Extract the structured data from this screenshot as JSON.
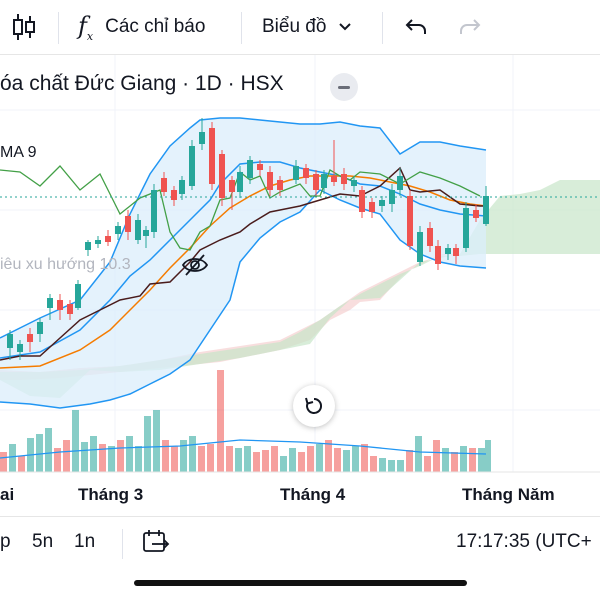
{
  "toolbar": {
    "indicators_label": "Các chỉ báo",
    "chart_type_label": "Biểu đồ"
  },
  "legend": {
    "title": "óa chất Đức Giang · 1D · HSX",
    "ma_label": "MA 9",
    "trend_label": "iêu xu hướng 10.3"
  },
  "time_axis": {
    "labels": [
      "ai",
      "Tháng 3",
      "Tháng 4",
      "Tháng Năm"
    ]
  },
  "bottom_bar": {
    "intervals": [
      "p",
      "5n",
      "1n"
    ],
    "clock": "17:17:35 (UTC+"
  },
  "colors": {
    "up": "#26a69a",
    "down": "#ef5350",
    "bollinger": "#2196f3",
    "ema": "#f57c00",
    "lagging": "#388e3c",
    "cloud_bull": "#a5d6a7",
    "cloud_bear": "#ef9a9a",
    "dark_line": "#4a1c1c"
  }
}
